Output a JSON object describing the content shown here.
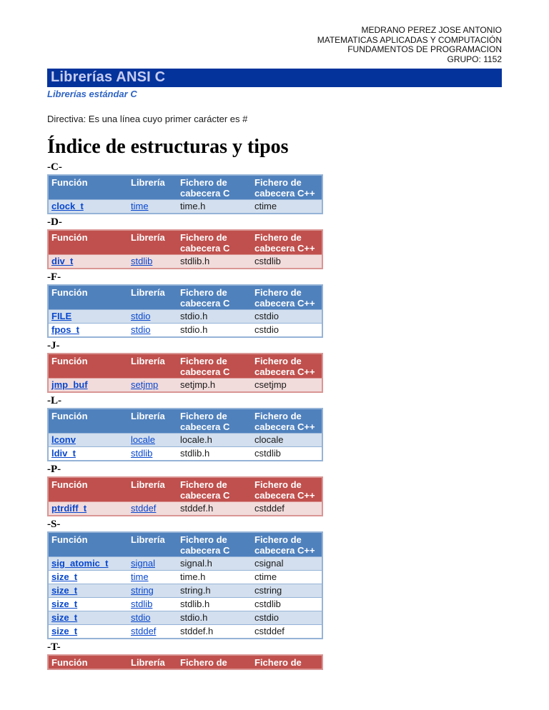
{
  "header": {
    "lines": [
      "MEDRANO PEREZ JOSE ANTONIO",
      "MATEMATICAS APLICADAS Y COMPUTACIÓN",
      "FUNDAMENTOS DE PROGRAMACION",
      "GRUPO: 1152"
    ]
  },
  "banner": {
    "title": "Librerías ANSI C"
  },
  "subtitle": "Librerías estándar  C",
  "directive": "Directiva: Es una línea cuyo primer carácter es #",
  "index_title": "Índice de estructuras y tipos",
  "columns": {
    "full": [
      "Función",
      "Librería",
      "Fichero de cabecera C",
      "Fichero de cabecera C++"
    ],
    "truncated": [
      "Función",
      "Librería",
      "Fichero de",
      "Fichero de"
    ]
  },
  "sections": [
    {
      "letter": "-C-",
      "theme": "blue",
      "columns": "full",
      "rows": [
        [
          "clock_t",
          "time",
          "time.h",
          "ctime"
        ]
      ]
    },
    {
      "letter": "-D-",
      "theme": "red",
      "columns": "full",
      "rows": [
        [
          "div_t",
          "stdlib",
          "stdlib.h",
          "cstdlib"
        ]
      ]
    },
    {
      "letter": "-F-",
      "theme": "blue",
      "columns": "full",
      "rows": [
        [
          "FILE",
          "stdio",
          "stdio.h",
          "cstdio"
        ],
        [
          "fpos_t",
          "stdio",
          "stdio.h",
          "cstdio"
        ]
      ]
    },
    {
      "letter": "-J-",
      "theme": "red",
      "columns": "full",
      "rows": [
        [
          "jmp_buf",
          "setjmp",
          "setjmp.h",
          "csetjmp"
        ]
      ]
    },
    {
      "letter": "-L-",
      "theme": "blue",
      "columns": "full",
      "rows": [
        [
          "lconv",
          "locale",
          "locale.h",
          "clocale"
        ],
        [
          "ldiv_t",
          "stdlib",
          "stdlib.h",
          "cstdlib"
        ]
      ]
    },
    {
      "letter": "-P-",
      "theme": "red",
      "columns": "full",
      "rows": [
        [
          "ptrdiff_t",
          "stddef",
          "stddef.h",
          "cstddef"
        ]
      ]
    },
    {
      "letter": "-S-",
      "theme": "blue",
      "columns": "full",
      "rows": [
        [
          "sig_atomic_t",
          "signal",
          "signal.h",
          "csignal"
        ],
        [
          "size_t",
          "time",
          "time.h",
          "ctime"
        ],
        [
          "size_t",
          "string",
          "string.h",
          "cstring"
        ],
        [
          "size_t",
          "stdlib",
          "stdlib.h",
          "cstdlib"
        ],
        [
          "size_t",
          "stdio",
          "stdio.h",
          "cstdio"
        ],
        [
          "size_t",
          "stddef",
          "stddef.h",
          "cstddef"
        ]
      ]
    },
    {
      "letter": "-T-",
      "theme": "red",
      "columns": "truncated",
      "rows": []
    }
  ],
  "colors": {
    "banner_bg": "#04339C",
    "banner_text": "#C7CCF1",
    "subtitle_text": "#2E64C4",
    "blue_header_bg": "#4F81BD",
    "blue_row_bg": "#D3DFEE",
    "blue_border": "#95B3D7",
    "red_header_bg": "#C0504D",
    "red_row_bg": "#F2DBDB",
    "red_border": "#D99694",
    "link_color": "#0847CE"
  }
}
